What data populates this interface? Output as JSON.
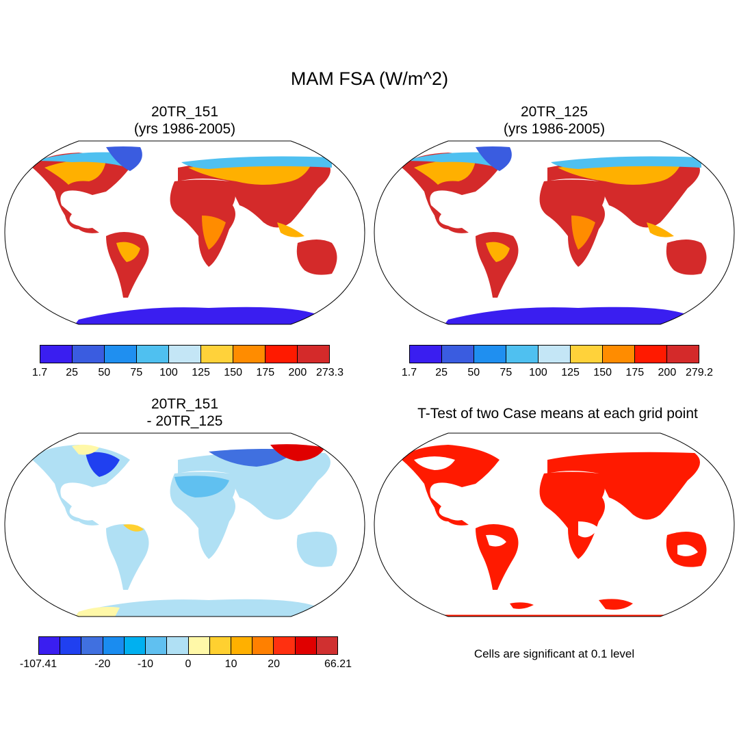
{
  "figure": {
    "title": "MAM FSA (W/m^2)",
    "panels": [
      {
        "id": "p1",
        "title_line1": "20TR_151",
        "title_line2": "(yrs 1986-2005)",
        "colorbar": {
          "colors": [
            "#3a1ef0",
            "#3a5ce0",
            "#1f8ff0",
            "#4fc0f0",
            "#c4e6f6",
            "#ffd23a",
            "#ff8c00",
            "#ff1a00",
            "#d42a2a"
          ],
          "labels": [
            "1.7",
            "25",
            "50",
            "75",
            "100",
            "125",
            "150",
            "175",
            "200",
            "273.3"
          ]
        }
      },
      {
        "id": "p2",
        "title_line1": "20TR_125",
        "title_line2": "(yrs 1986-2005)",
        "colorbar": {
          "colors": [
            "#3a1ef0",
            "#3a5ce0",
            "#1f8ff0",
            "#4fc0f0",
            "#c4e6f6",
            "#ffd23a",
            "#ff8c00",
            "#ff1a00",
            "#d42a2a"
          ],
          "labels": [
            "1.7",
            "25",
            "50",
            "75",
            "100",
            "125",
            "150",
            "175",
            "200",
            "279.2"
          ]
        }
      },
      {
        "id": "p3",
        "title_line1": "20TR_151",
        "title_line2": "- 20TR_125",
        "colorbar": {
          "colors": [
            "#3a1ef0",
            "#2040f0",
            "#4070e0",
            "#1a8cf0",
            "#00b0f0",
            "#60c0f0",
            "#b0e0f4",
            "#fff8a8",
            "#ffd030",
            "#ffb000",
            "#ff8000",
            "#ff3010",
            "#e00000",
            "#d03030"
          ],
          "labels": [
            "-107.41",
            "-20",
            "-10",
            "0",
            "10",
            "20",
            "66.21"
          ]
        }
      },
      {
        "id": "p4",
        "title_line1": "T-Test of two Case means at each grid point",
        "note": "Cells are significant at 0.1 level"
      }
    ]
  }
}
